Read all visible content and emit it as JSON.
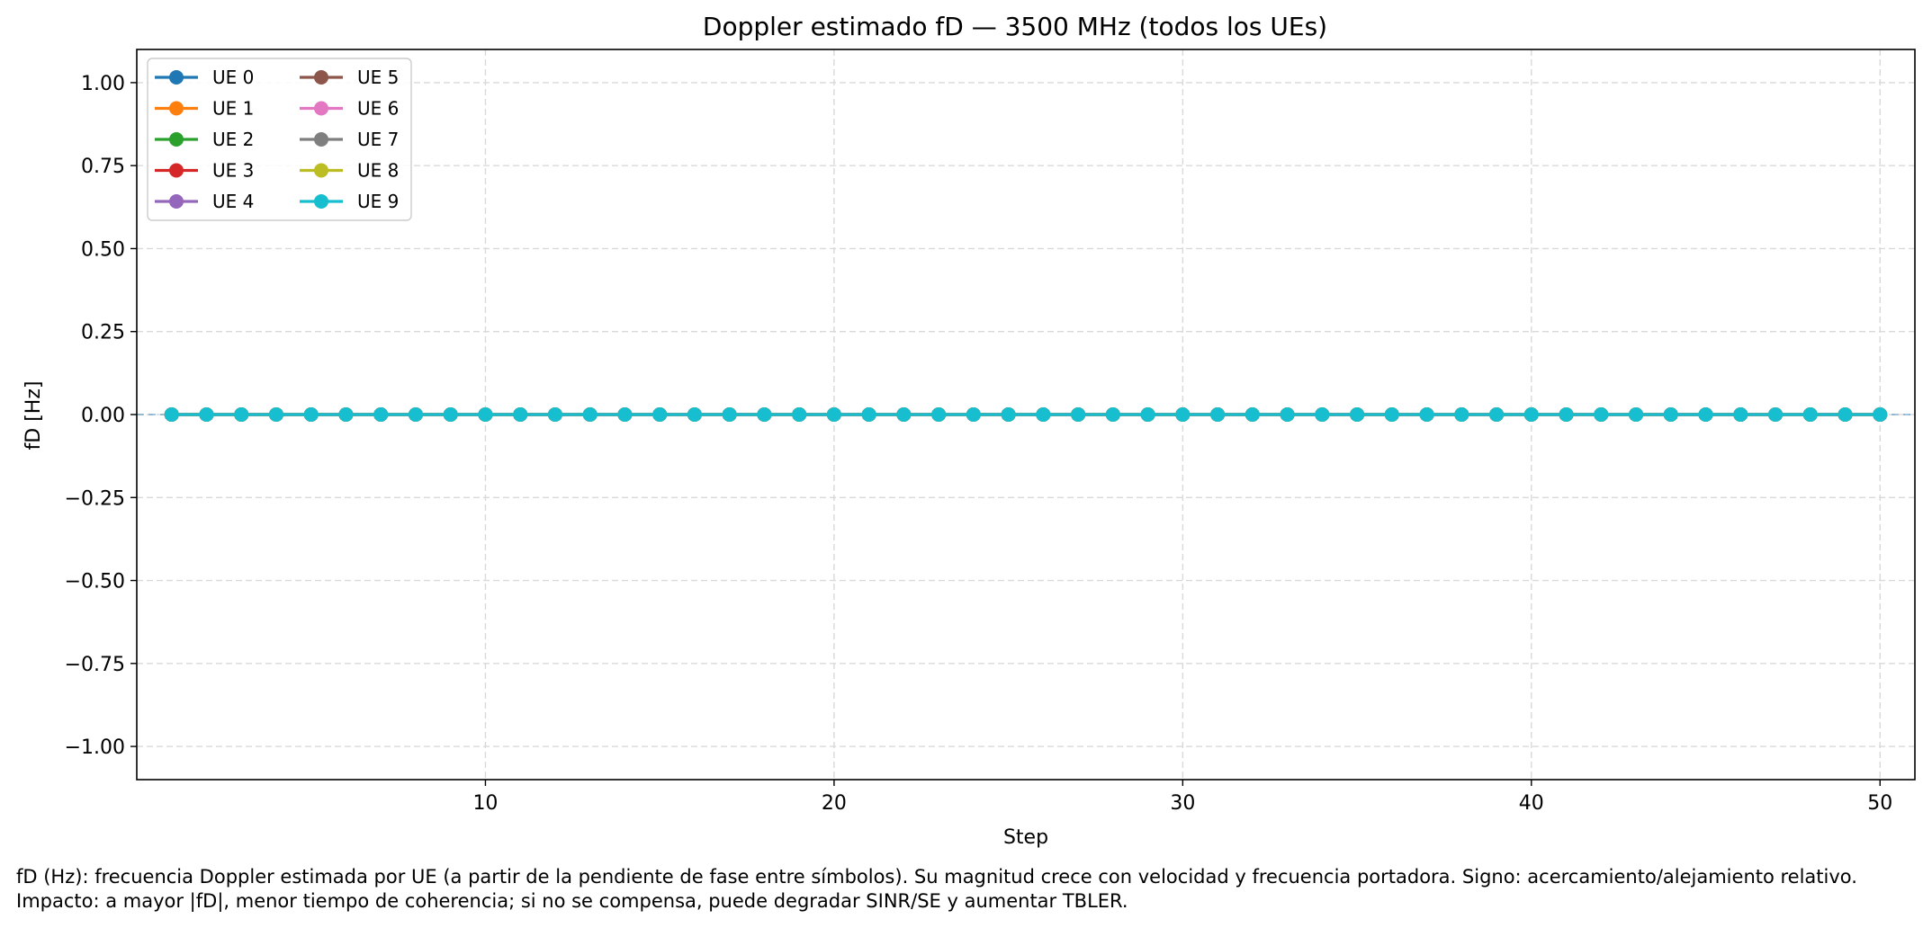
{
  "chart_data": {
    "type": "line",
    "title": "Doppler estimado fD — 3500 MHz (todos los UEs)",
    "xlabel": "Step",
    "ylabel": "fD [Hz]",
    "xlim": [
      0,
      51
    ],
    "ylim": [
      -1.1,
      1.1
    ],
    "x_ticks": [
      10,
      20,
      30,
      40,
      50
    ],
    "y_ticks": [
      -1.0,
      -0.75,
      -0.5,
      -0.25,
      0.0,
      0.25,
      0.5,
      0.75,
      1.0
    ],
    "y_tick_labels": [
      "−1.00",
      "−0.75",
      "−0.50",
      "−0.25",
      "0.00",
      "0.25",
      "0.50",
      "0.75",
      "1.00"
    ],
    "x_tick_labels": [
      "10",
      "20",
      "30",
      "40",
      "50"
    ],
    "grid": true,
    "legend_position": "top-left",
    "reference_line": {
      "y": 0,
      "style": "dashed"
    },
    "x": [
      1,
      2,
      3,
      4,
      5,
      6,
      7,
      8,
      9,
      10,
      11,
      12,
      13,
      14,
      15,
      16,
      17,
      18,
      19,
      20,
      21,
      22,
      23,
      24,
      25,
      26,
      27,
      28,
      29,
      30,
      31,
      32,
      33,
      34,
      35,
      36,
      37,
      38,
      39,
      40,
      41,
      42,
      43,
      44,
      45,
      46,
      47,
      48,
      49,
      50
    ],
    "series": [
      {
        "name": "UE 0",
        "color": "#1f77b4",
        "values": [
          0,
          0,
          0,
          0,
          0,
          0,
          0,
          0,
          0,
          0,
          0,
          0,
          0,
          0,
          0,
          0,
          0,
          0,
          0,
          0,
          0,
          0,
          0,
          0,
          0,
          0,
          0,
          0,
          0,
          0,
          0,
          0,
          0,
          0,
          0,
          0,
          0,
          0,
          0,
          0,
          0,
          0,
          0,
          0,
          0,
          0,
          0,
          0,
          0,
          0
        ]
      },
      {
        "name": "UE 1",
        "color": "#ff7f0e",
        "values": [
          0,
          0,
          0,
          0,
          0,
          0,
          0,
          0,
          0,
          0,
          0,
          0,
          0,
          0,
          0,
          0,
          0,
          0,
          0,
          0,
          0,
          0,
          0,
          0,
          0,
          0,
          0,
          0,
          0,
          0,
          0,
          0,
          0,
          0,
          0,
          0,
          0,
          0,
          0,
          0,
          0,
          0,
          0,
          0,
          0,
          0,
          0,
          0,
          0,
          0
        ]
      },
      {
        "name": "UE 2",
        "color": "#2ca02c",
        "values": [
          0,
          0,
          0,
          0,
          0,
          0,
          0,
          0,
          0,
          0,
          0,
          0,
          0,
          0,
          0,
          0,
          0,
          0,
          0,
          0,
          0,
          0,
          0,
          0,
          0,
          0,
          0,
          0,
          0,
          0,
          0,
          0,
          0,
          0,
          0,
          0,
          0,
          0,
          0,
          0,
          0,
          0,
          0,
          0,
          0,
          0,
          0,
          0,
          0,
          0
        ]
      },
      {
        "name": "UE 3",
        "color": "#d62728",
        "values": [
          0,
          0,
          0,
          0,
          0,
          0,
          0,
          0,
          0,
          0,
          0,
          0,
          0,
          0,
          0,
          0,
          0,
          0,
          0,
          0,
          0,
          0,
          0,
          0,
          0,
          0,
          0,
          0,
          0,
          0,
          0,
          0,
          0,
          0,
          0,
          0,
          0,
          0,
          0,
          0,
          0,
          0,
          0,
          0,
          0,
          0,
          0,
          0,
          0,
          0
        ]
      },
      {
        "name": "UE 4",
        "color": "#9467bd",
        "values": [
          0,
          0,
          0,
          0,
          0,
          0,
          0,
          0,
          0,
          0,
          0,
          0,
          0,
          0,
          0,
          0,
          0,
          0,
          0,
          0,
          0,
          0,
          0,
          0,
          0,
          0,
          0,
          0,
          0,
          0,
          0,
          0,
          0,
          0,
          0,
          0,
          0,
          0,
          0,
          0,
          0,
          0,
          0,
          0,
          0,
          0,
          0,
          0,
          0,
          0
        ]
      },
      {
        "name": "UE 5",
        "color": "#8c564b",
        "values": [
          0,
          0,
          0,
          0,
          0,
          0,
          0,
          0,
          0,
          0,
          0,
          0,
          0,
          0,
          0,
          0,
          0,
          0,
          0,
          0,
          0,
          0,
          0,
          0,
          0,
          0,
          0,
          0,
          0,
          0,
          0,
          0,
          0,
          0,
          0,
          0,
          0,
          0,
          0,
          0,
          0,
          0,
          0,
          0,
          0,
          0,
          0,
          0,
          0,
          0
        ]
      },
      {
        "name": "UE 6",
        "color": "#e377c2",
        "values": [
          0,
          0,
          0,
          0,
          0,
          0,
          0,
          0,
          0,
          0,
          0,
          0,
          0,
          0,
          0,
          0,
          0,
          0,
          0,
          0,
          0,
          0,
          0,
          0,
          0,
          0,
          0,
          0,
          0,
          0,
          0,
          0,
          0,
          0,
          0,
          0,
          0,
          0,
          0,
          0,
          0,
          0,
          0,
          0,
          0,
          0,
          0,
          0,
          0,
          0
        ]
      },
      {
        "name": "UE 7",
        "color": "#7f7f7f",
        "values": [
          0,
          0,
          0,
          0,
          0,
          0,
          0,
          0,
          0,
          0,
          0,
          0,
          0,
          0,
          0,
          0,
          0,
          0,
          0,
          0,
          0,
          0,
          0,
          0,
          0,
          0,
          0,
          0,
          0,
          0,
          0,
          0,
          0,
          0,
          0,
          0,
          0,
          0,
          0,
          0,
          0,
          0,
          0,
          0,
          0,
          0,
          0,
          0,
          0,
          0
        ]
      },
      {
        "name": "UE 8",
        "color": "#bcbd22",
        "values": [
          0,
          0,
          0,
          0,
          0,
          0,
          0,
          0,
          0,
          0,
          0,
          0,
          0,
          0,
          0,
          0,
          0,
          0,
          0,
          0,
          0,
          0,
          0,
          0,
          0,
          0,
          0,
          0,
          0,
          0,
          0,
          0,
          0,
          0,
          0,
          0,
          0,
          0,
          0,
          0,
          0,
          0,
          0,
          0,
          0,
          0,
          0,
          0,
          0,
          0
        ]
      },
      {
        "name": "UE 9",
        "color": "#17becf",
        "values": [
          0,
          0,
          0,
          0,
          0,
          0,
          0,
          0,
          0,
          0,
          0,
          0,
          0,
          0,
          0,
          0,
          0,
          0,
          0,
          0,
          0,
          0,
          0,
          0,
          0,
          0,
          0,
          0,
          0,
          0,
          0,
          0,
          0,
          0,
          0,
          0,
          0,
          0,
          0,
          0,
          0,
          0,
          0,
          0,
          0,
          0,
          0,
          0,
          0,
          0
        ]
      }
    ]
  },
  "caption": "fD (Hz): frecuencia Doppler estimada por UE (a partir de la pendiente de fase entre símbolos). Su magnitud crece con velocidad y frecuencia portadora. Signo: acercamiento/alejamiento relativo. Impacto: a mayor |fD|, menor tiempo de coherencia; si no se compensa, puede degradar SINR/SE y aumentar TBLER."
}
